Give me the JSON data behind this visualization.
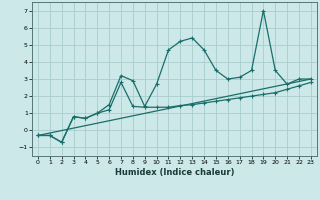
{
  "xlabel": "Humidex (Indice chaleur)",
  "xlim": [
    -0.5,
    23.5
  ],
  "ylim": [
    -1.5,
    7.5
  ],
  "yticks": [
    -1,
    0,
    1,
    2,
    3,
    4,
    5,
    6,
    7
  ],
  "xticks": [
    0,
    1,
    2,
    3,
    4,
    5,
    6,
    7,
    8,
    9,
    10,
    11,
    12,
    13,
    14,
    15,
    16,
    17,
    18,
    19,
    20,
    21,
    22,
    23
  ],
  "background_color": "#cce8e8",
  "grid_color": "#aacccc",
  "line_color": "#1a6e6a",
  "line1_x": [
    0,
    1,
    2,
    3,
    4,
    5,
    6,
    7,
    8,
    9,
    10,
    11,
    12,
    13,
    14,
    15,
    16,
    17,
    18,
    19,
    20,
    21,
    22,
    23
  ],
  "line1_y": [
    -0.3,
    -0.3,
    -0.7,
    0.8,
    0.7,
    1.0,
    1.5,
    3.2,
    2.9,
    1.4,
    2.7,
    4.7,
    5.2,
    5.4,
    4.7,
    3.5,
    3.0,
    3.1,
    3.5,
    7.0,
    3.5,
    2.7,
    3.0,
    3.0
  ],
  "line2_x": [
    0,
    1,
    2,
    3,
    4,
    5,
    6,
    7,
    8,
    9,
    10,
    11,
    12,
    13,
    14,
    15,
    16,
    17,
    18,
    19,
    20,
    21,
    22,
    23
  ],
  "line2_y": [
    -0.3,
    -0.3,
    -0.7,
    0.8,
    0.7,
    1.0,
    1.2,
    2.8,
    1.4,
    1.35,
    1.35,
    1.35,
    1.45,
    1.5,
    1.6,
    1.7,
    1.8,
    1.9,
    2.0,
    2.1,
    2.2,
    2.4,
    2.6,
    2.8
  ],
  "line3_x": [
    0,
    23
  ],
  "line3_y": [
    -0.3,
    3.0
  ]
}
